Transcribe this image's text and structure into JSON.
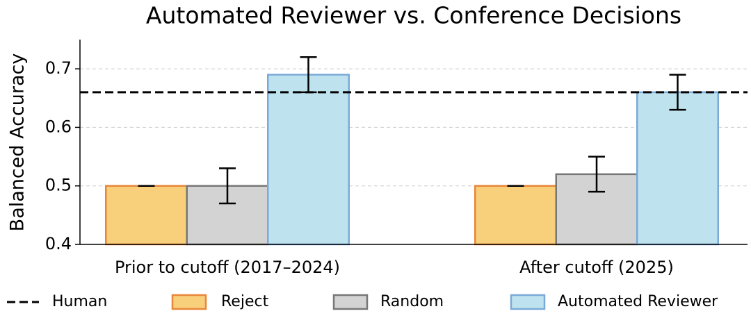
{
  "chart_data": {
    "type": "bar",
    "title": "Automated Reviewer vs. Conference Decisions",
    "ylabel": "Balanced Accuracy",
    "categories": [
      "Prior to cutoff (2017–2024)",
      "After cutoff (2025)"
    ],
    "series": [
      {
        "name": "Reject",
        "color": "#f8cf7a",
        "edgecolor": "#e8873a",
        "values": [
          0.5,
          0.5
        ],
        "errors": [
          0,
          0
        ]
      },
      {
        "name": "Random",
        "color": "#d3d3d3",
        "edgecolor": "#777777",
        "values": [
          0.5,
          0.52
        ],
        "errors": [
          0.03,
          0.03
        ]
      },
      {
        "name": "Automated Reviewer",
        "color": "#bfe3ee",
        "edgecolor": "#7aaad8",
        "values": [
          0.69,
          0.66
        ],
        "errors": [
          0.03,
          0.03
        ]
      }
    ],
    "reference": {
      "name": "Human",
      "value": 0.66,
      "color": "#000000"
    },
    "ylim": [
      0.4,
      0.75
    ],
    "yticks": [
      0.4,
      0.5,
      0.6,
      0.7
    ],
    "grid": true,
    "legend": "bottom"
  }
}
